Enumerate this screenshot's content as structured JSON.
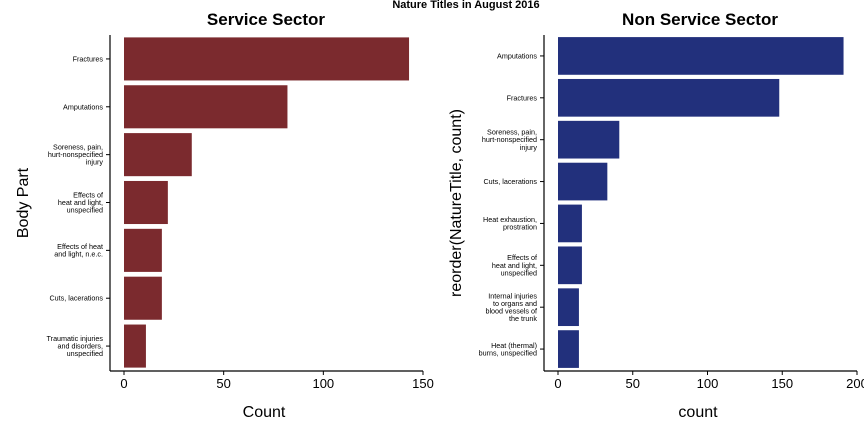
{
  "figure_title": "Nature Titles in August 2016",
  "chart_data": [
    {
      "type": "bar",
      "orientation": "horizontal",
      "title": "Service Sector",
      "xlabel": "Count",
      "ylabel": "Body Part",
      "xlim": [
        0,
        150
      ],
      "xticks": [
        0,
        50,
        100,
        150
      ],
      "color": "#7b2a2e",
      "grid": false,
      "categories": [
        "Fractures",
        "Amputations",
        "Soreness, pain,\nhurt-nonspecified\ninjury",
        "Effects of\nheat and light,\nunspecified",
        "Effects of heat\nand light, n.e.c.",
        "Cuts, lacerations",
        "Traumatic injuries\nand disorders,\nunspecified"
      ],
      "values": [
        143,
        82,
        34,
        22,
        19,
        19,
        11
      ]
    },
    {
      "type": "bar",
      "orientation": "horizontal",
      "title": "Non Service Sector",
      "xlabel": "count",
      "ylabel": "reorder(NatureTitle, count)",
      "xlim": [
        0,
        200
      ],
      "xticks": [
        0,
        50,
        100,
        150,
        200
      ],
      "color": "#22307c",
      "grid": false,
      "categories": [
        "Amputations",
        "Fractures",
        "Soreness, pain,\nhurt-nonspecified\ninjury",
        "Cuts, lacerations",
        "Heat exhaustion,\nprostration",
        "Effects of\nheat and light,\nunspecified",
        "Internal injuries\nto organs and\nblood vessels of\nthe trunk",
        "Heat (thermal)\nburns, unspecified"
      ],
      "values": [
        191,
        148,
        41,
        33,
        16,
        16,
        14,
        14
      ]
    }
  ]
}
